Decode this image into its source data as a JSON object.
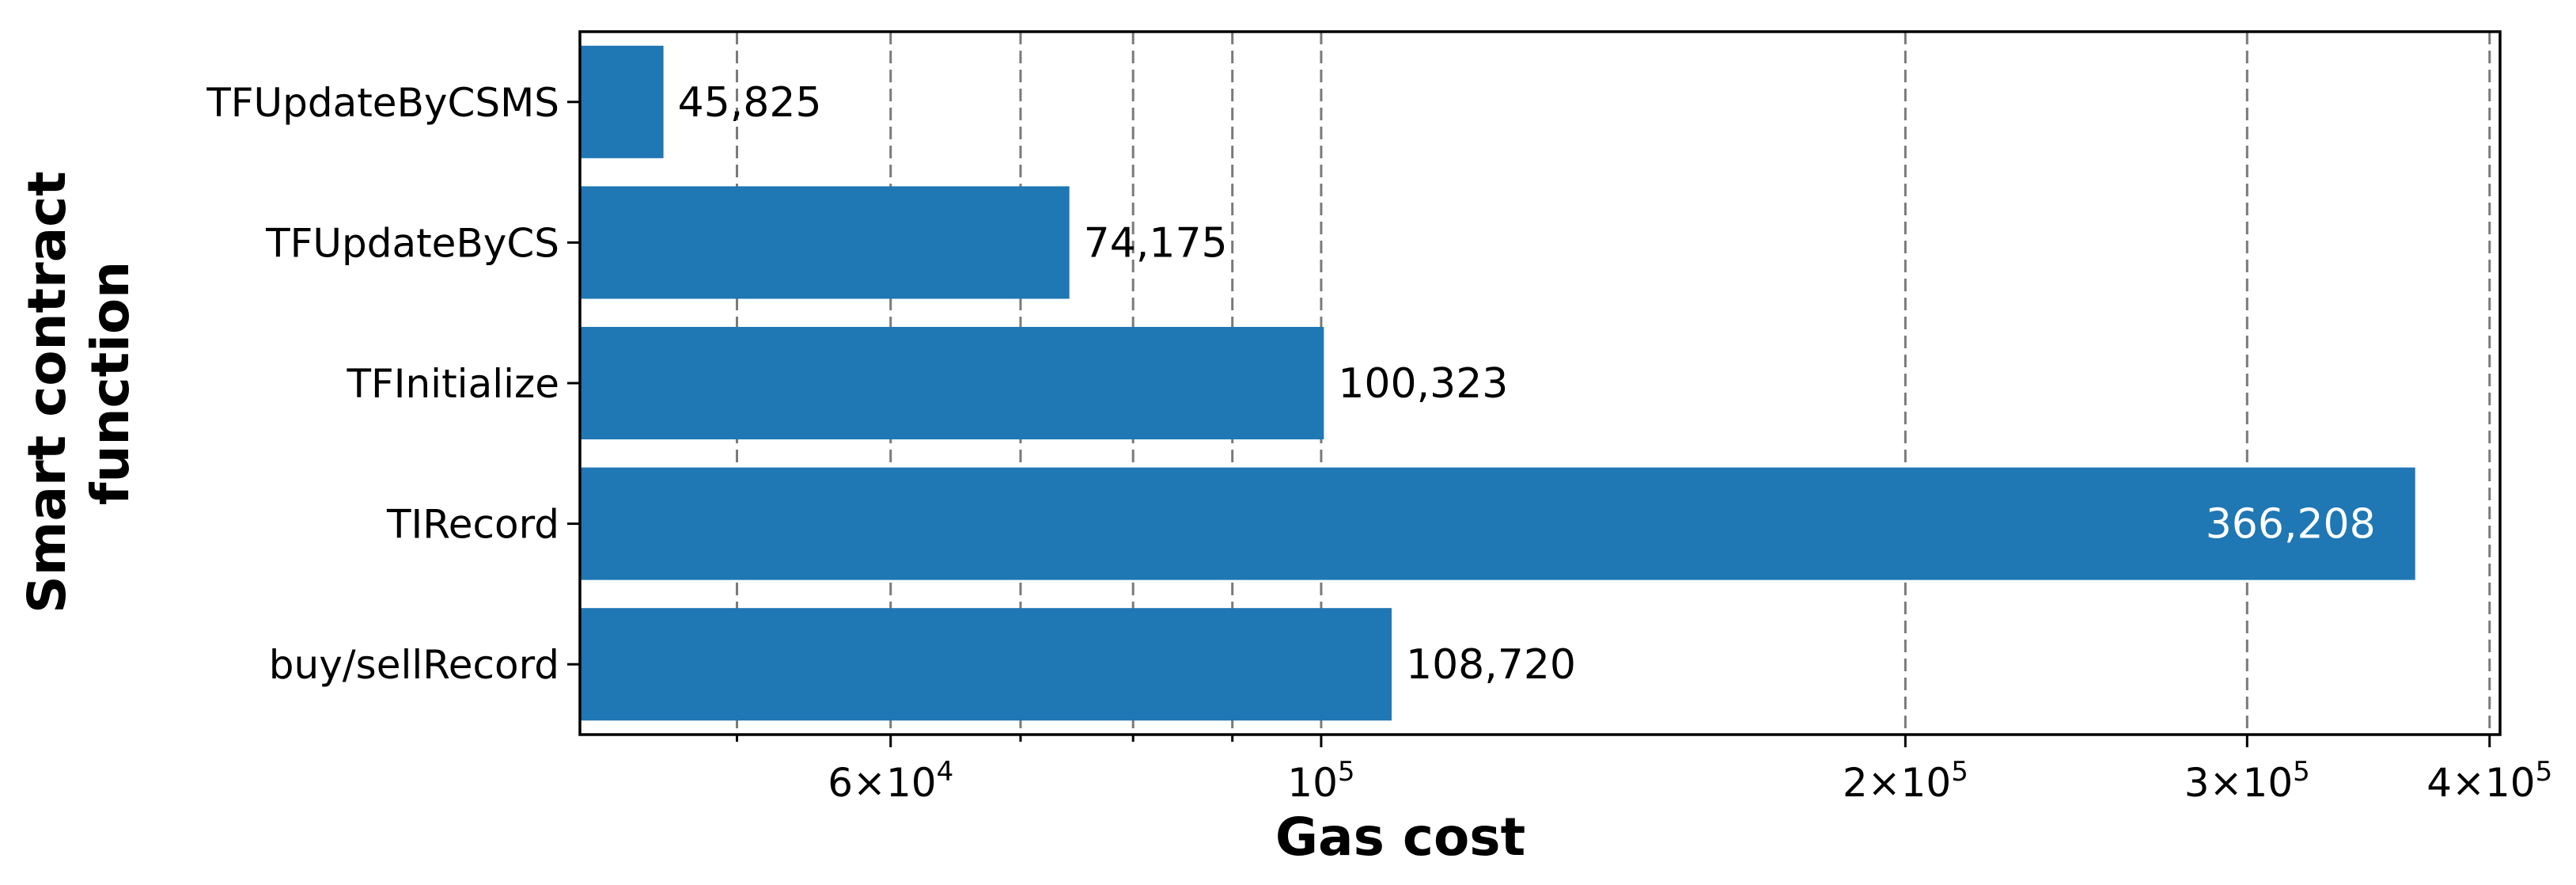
{
  "chart_data": {
    "type": "bar",
    "orientation": "horizontal",
    "categories": [
      "TFUpdateByCSMS",
      "TFUpdateByCS",
      "TFInitialize",
      "TIRecord",
      "buy/sellRecord"
    ],
    "values": [
      45825,
      74175,
      100323,
      366208,
      108720
    ],
    "value_labels": [
      "45,825",
      "74,175",
      "100,323",
      "366,208",
      "108,720"
    ],
    "xlabel": "Gas cost",
    "ylabel": "Smart contract function",
    "ylabel_lines": [
      "Smart contract",
      "function"
    ],
    "xscale": "log",
    "xlim": [
      41500,
      405000
    ],
    "major_ticks": [
      {
        "value": 60000,
        "mantissa": "6",
        "exponent": "4"
      },
      {
        "value": 100000,
        "mantissa": "",
        "exponent": "5"
      },
      {
        "value": 200000,
        "mantissa": "2",
        "exponent": "5"
      },
      {
        "value": 300000,
        "mantissa": "3",
        "exponent": "5"
      },
      {
        "value": 400000,
        "mantissa": "4",
        "exponent": "5"
      }
    ],
    "minor_ticks": [
      50000,
      70000,
      80000,
      90000
    ],
    "grid": "x-dashed",
    "colors": {
      "bar": "#1f77b4",
      "label_outside": "#000000",
      "label_inside": "#ffffff"
    }
  }
}
